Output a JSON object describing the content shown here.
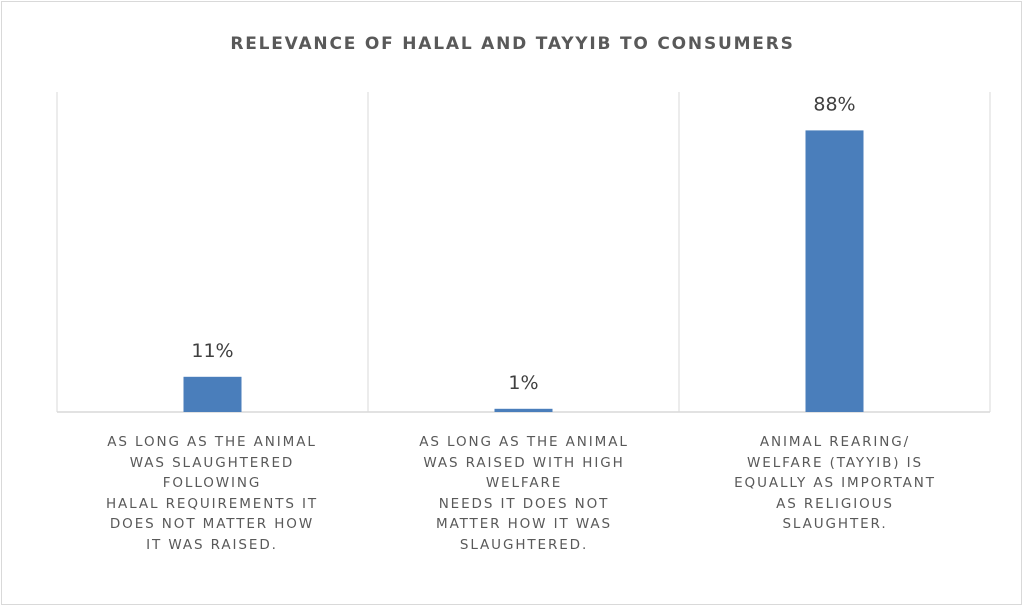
{
  "chart_data": {
    "type": "bar",
    "title": "RELEVANCE OF HALAL AND TAYYIB TO CONSUMERS",
    "categories": [
      "AS LONG AS THE ANIMAL\nWAS SLAUGHTERED\nFOLLOWING\nHALAL REQUIREMENTS IT\nDOES NOT MATTER HOW\nIT WAS RAISED.",
      "AS LONG AS THE ANIMAL\nWAS RAISED WITH HIGH\nWELFARE\nNEEDS IT DOES NOT\nMATTER HOW IT WAS\nSLAUGHTERED.",
      "ANIMAL REARING/\nWELFARE (TAYYIB) IS\nEQUALLY AS IMPORTANT\nAS  RELIGIOUS\nSLAUGHTER."
    ],
    "values": [
      11,
      1,
      88
    ],
    "data_labels": [
      "11%",
      "1%",
      "88%"
    ],
    "ylim": [
      0,
      100
    ],
    "grid": false,
    "legend": "none",
    "bar_color": "#4a7ebb",
    "axis_color": "#d9d9d9",
    "text_color": "#595959"
  }
}
